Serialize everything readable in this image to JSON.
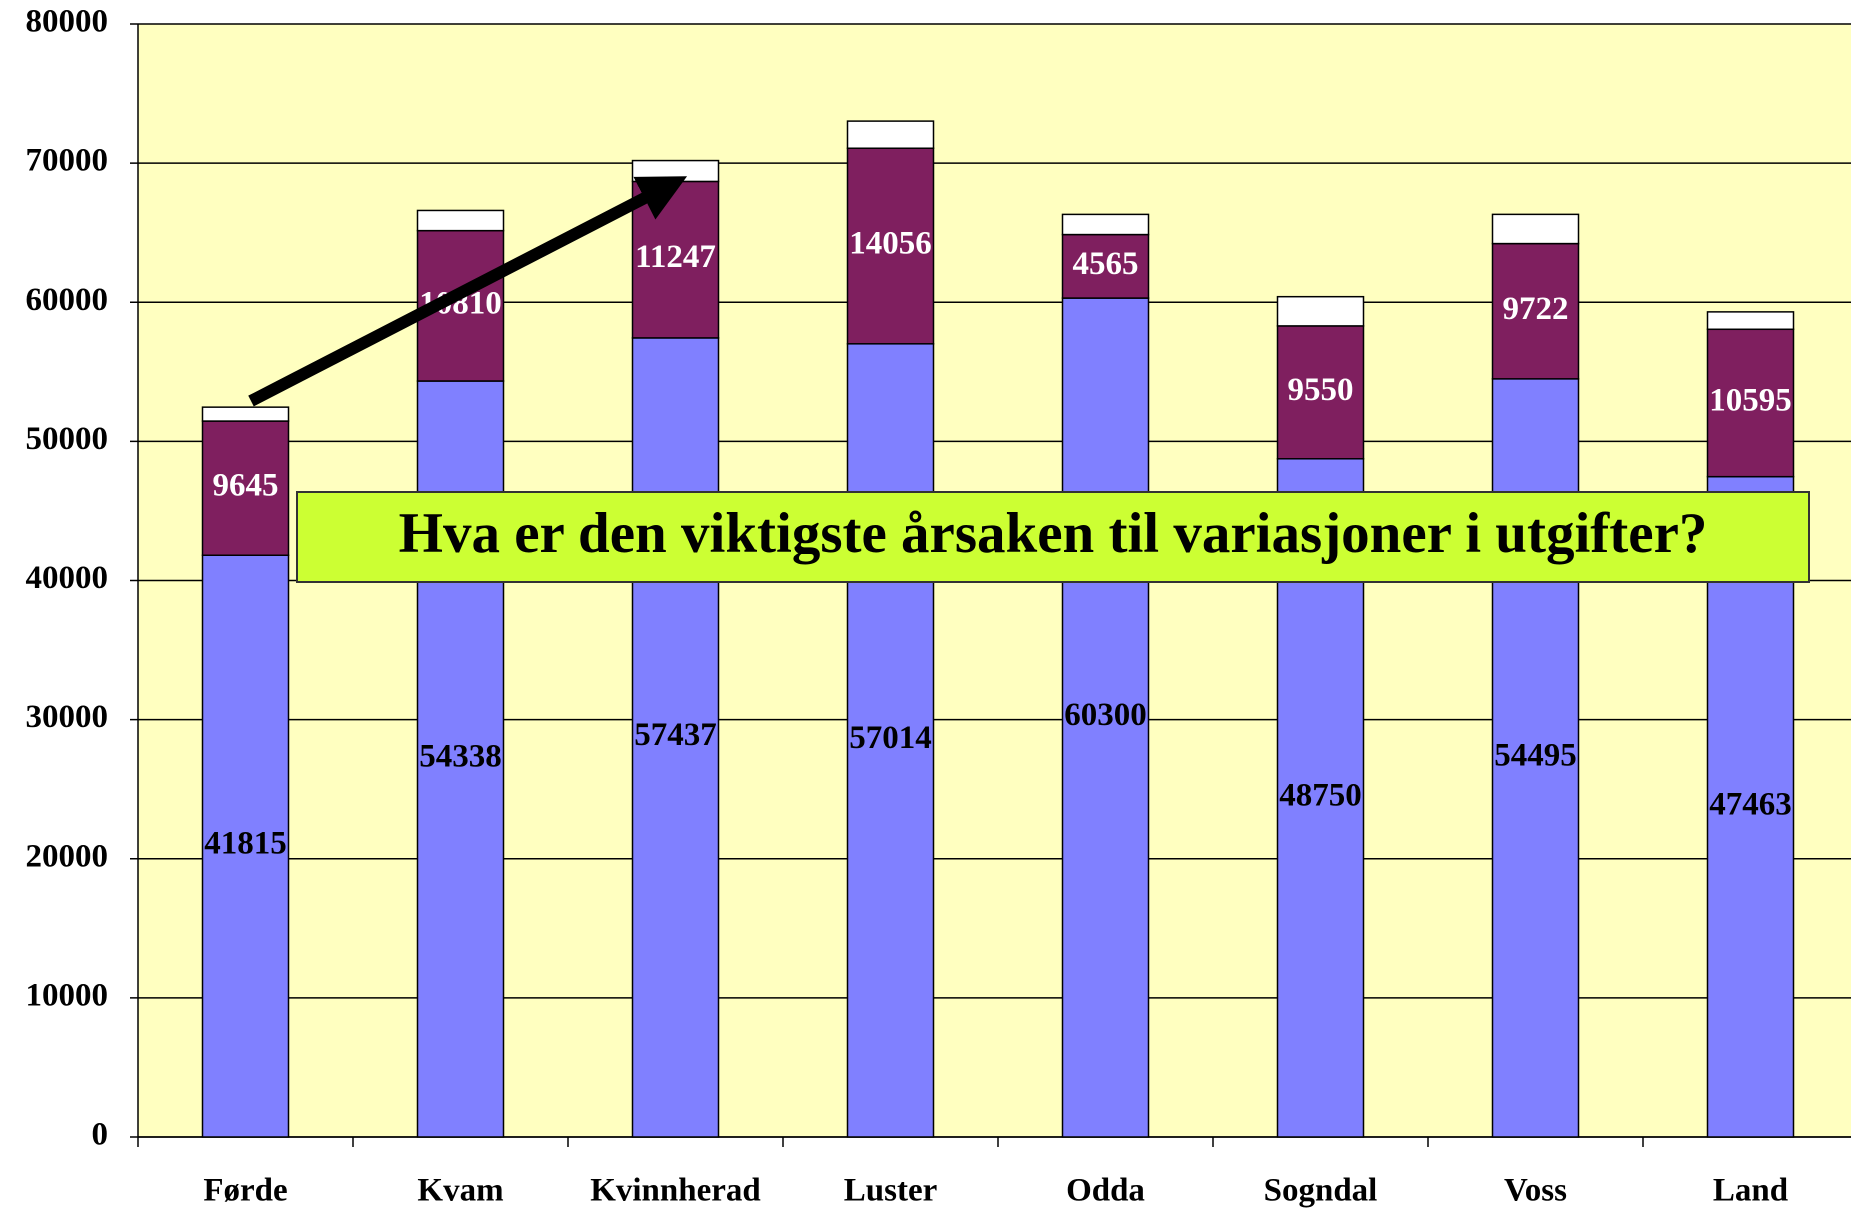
{
  "chart_data": {
    "type": "stacked_bar",
    "categories": [
      "Førde",
      "Kvam",
      "Kvinnherad",
      "Luster",
      "Odda",
      "Sogndal",
      "Voss",
      "Land"
    ],
    "series": [
      {
        "color": "#8080ff",
        "label_color": "#000000",
        "values": [
          41815,
          54338,
          57437,
          57014,
          60300,
          48750,
          54495,
          47463
        ]
      },
      {
        "color": "#7f1f5f",
        "label_color": "#ffffff",
        "values": [
          9645,
          10810,
          11247,
          14056,
          4565,
          9550,
          9722,
          10595
        ]
      },
      {
        "color": "#ffffff",
        "values": [
          1000,
          1450,
          1500,
          1950,
          1450,
          2100,
          2100,
          1250
        ]
      }
    ],
    "ylim": [
      0,
      80000
    ],
    "yticks": [
      0,
      10000,
      20000,
      30000,
      40000,
      50000,
      60000,
      70000,
      80000
    ],
    "grid": true,
    "plot_background": "#ffffc0",
    "annotation": "Hva er den viktigste årsaken til variasjoner i utgifter?"
  }
}
